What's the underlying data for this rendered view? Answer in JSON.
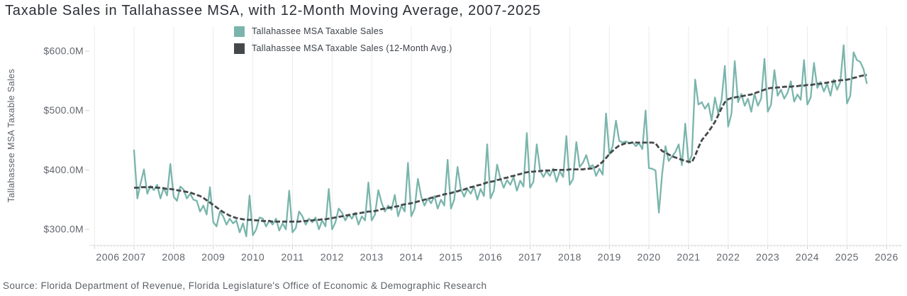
{
  "header": {
    "title": "Taxable Sales in Tallahassee MSA, with 12-Month Moving Average, 2007-2025"
  },
  "source": {
    "text": "Source: Florida Department of Revenue, Florida Legislature's Office of Economic & Demographic Research"
  },
  "colors": {
    "series1": "#7ab5ac",
    "series2": "#45484b",
    "grid": "#ebebeb",
    "axis_line": "#e3e3e3",
    "tick_mark": "#cfcfcf",
    "axis_text": "#62676e",
    "title_text": "#2a2e35",
    "source_text": "#5c6167"
  },
  "chart_data": {
    "type": "line",
    "title": "Taxable Sales in Tallahassee MSA, with 12-Month Moving Average, 2007-2025",
    "xlabel": "",
    "ylabel": "Tallahassee MSA Taxable Sales",
    "unit": "millions of dollars",
    "x_start": "2007-01",
    "x_end": "2025-07",
    "x_frequency": "monthly",
    "x_tick_years": [
      2006,
      2007,
      2008,
      2009,
      2010,
      2011,
      2012,
      2013,
      2014,
      2015,
      2016,
      2017,
      2018,
      2019,
      2020,
      2021,
      2022,
      2023,
      2024,
      2025,
      2026
    ],
    "y_ticks": [
      {
        "label": "$600.0M",
        "value": 600
      },
      {
        "label": "$500.0M",
        "value": 500
      },
      {
        "label": "$400.0M",
        "value": 400
      },
      {
        "label": "$300.0M",
        "value": 300
      }
    ],
    "ylim": [
      272,
      642
    ],
    "grid": "vertical-only",
    "legend_position": "top-center",
    "series": [
      {
        "name": "Tallahassee MSA Taxable Sales",
        "color": "#7ab5ac",
        "style": "solid",
        "values": [
          433,
          352,
          378,
          401,
          360,
          373,
          366,
          375,
          352,
          370,
          357,
          410,
          355,
          348,
          372,
          367,
          352,
          360,
          350,
          348,
          330,
          340,
          325,
          371,
          312,
          305,
          330,
          322,
          308,
          318,
          310,
          315,
          295,
          310,
          288,
          357,
          290,
          300,
          320,
          318,
          305,
          315,
          308,
          318,
          298,
          310,
          300,
          365,
          295,
          302,
          330,
          322,
          308,
          318,
          312,
          320,
          300,
          315,
          305,
          368,
          300,
          312,
          335,
          328,
          315,
          325,
          318,
          328,
          308,
          322,
          315,
          379,
          315,
          325,
          366,
          345,
          330,
          340,
          333,
          358,
          322,
          340,
          330,
          412,
          322,
          335,
          385,
          355,
          340,
          352,
          344,
          356,
          335,
          350,
          340,
          417,
          335,
          350,
          405,
          368,
          355,
          368,
          360,
          372,
          350,
          368,
          356,
          443,
          352,
          365,
          409,
          385,
          370,
          383,
          375,
          388,
          365,
          382,
          372,
          462,
          370,
          380,
          443,
          400,
          388,
          398,
          390,
          402,
          380,
          398,
          388,
          457,
          375,
          385,
          447,
          405,
          412,
          425,
          405,
          408,
          390,
          402,
          392,
          495,
          426,
          440,
          483,
          449,
          446,
          448,
          445,
          447,
          440,
          445,
          435,
          500,
          403,
          402,
          399,
          328,
          393,
          440,
          415,
          423,
          430,
          443,
          408,
          478,
          412,
          425,
          552,
          510,
          514,
          503,
          512,
          483,
          522,
          495,
          518,
          575,
          473,
          495,
          583,
          514,
          528,
          508,
          520,
          498,
          528,
          508,
          520,
          587,
          498,
          510,
          568,
          525,
          535,
          520,
          530,
          549,
          515,
          527,
          518,
          585,
          510,
          522,
          580,
          538,
          548,
          532,
          545,
          525,
          552,
          535,
          548,
          610,
          512,
          525,
          598,
          585,
          582,
          570,
          546
        ]
      },
      {
        "name": "Tallahassee MSA Taxable Sales (12-Month Avg.)",
        "color": "#45484b",
        "style": "dashed",
        "values": [
          370,
          370,
          371,
          371,
          371,
          371,
          371,
          370,
          370,
          369,
          368,
          368,
          367,
          366,
          365,
          364,
          363,
          362,
          360,
          358,
          356,
          353,
          349,
          345,
          341,
          337,
          333,
          329,
          326,
          323,
          321,
          319,
          318,
          317,
          316,
          316,
          316,
          315,
          315,
          314,
          314,
          314,
          313,
          313,
          313,
          313,
          313,
          313,
          313,
          313,
          313,
          314,
          314,
          315,
          315,
          316,
          316,
          317,
          317,
          318,
          319,
          320,
          321,
          322,
          323,
          324,
          325,
          326,
          327,
          328,
          329,
          330,
          330,
          331,
          332,
          334,
          335,
          336,
          337,
          338,
          339,
          341,
          342,
          343,
          344,
          345,
          347,
          348,
          350,
          351,
          353,
          354,
          356,
          357,
          359,
          360,
          361,
          363,
          364,
          366,
          367,
          369,
          371,
          372,
          374,
          375,
          377,
          379,
          380,
          381,
          383,
          384,
          386,
          387,
          389,
          390,
          392,
          393,
          395,
          396,
          397,
          397,
          398,
          398,
          399,
          399,
          399,
          400,
          400,
          400,
          400,
          400,
          401,
          401,
          401,
          401,
          401,
          402,
          402,
          403,
          405,
          409,
          414,
          420,
          427,
          432,
          437,
          441,
          443,
          445,
          445,
          446,
          446,
          446,
          446,
          446,
          446,
          446,
          445,
          437,
          432,
          429,
          426,
          423,
          421,
          419,
          417,
          415,
          414,
          413,
          424,
          438,
          450,
          457,
          464,
          472,
          481,
          492,
          504,
          514,
          519,
          521,
          522,
          523,
          524,
          525,
          526,
          527,
          529,
          531,
          533,
          535,
          537,
          538,
          538,
          539,
          539,
          540,
          540,
          540,
          541,
          541,
          542,
          542,
          543,
          543,
          544,
          545,
          545,
          546,
          547,
          548,
          549,
          550,
          551,
          551,
          552,
          553,
          555,
          556,
          558,
          559,
          560
        ]
      }
    ]
  }
}
